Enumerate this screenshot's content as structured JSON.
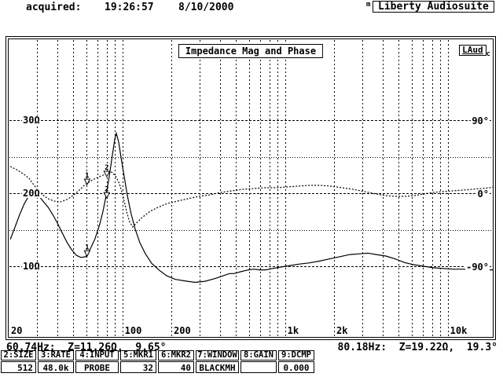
{
  "header": {
    "acquired_label": "acquired:",
    "time": "19:26:57",
    "date": "8/10/2000",
    "mode_flag": "m",
    "app_name": "Liberty Audiosuite"
  },
  "plot": {
    "title": "Impedance Mag and Phase",
    "corner_badge": "LAud",
    "corner_badge_sub": "c"
  },
  "chart_data": {
    "type": "line",
    "title": "Impedance Mag and Phase",
    "x_axis": {
      "scale": "log",
      "unit": "Hz",
      "range": [
        20,
        19500
      ],
      "ticks": [
        {
          "f": 20,
          "label": "20"
        },
        {
          "f": 30
        },
        {
          "f": 40
        },
        {
          "f": 50
        },
        {
          "f": 60
        },
        {
          "f": 70
        },
        {
          "f": 80
        },
        {
          "f": 90
        },
        {
          "f": 100,
          "label": "100"
        },
        {
          "f": 200,
          "label": "200"
        },
        {
          "f": 300
        },
        {
          "f": 400
        },
        {
          "f": 500
        },
        {
          "f": 600
        },
        {
          "f": 700
        },
        {
          "f": 800
        },
        {
          "f": 900
        },
        {
          "f": 1000,
          "label": "1k"
        },
        {
          "f": 2000,
          "label": "2k"
        },
        {
          "f": 3000
        },
        {
          "f": 4000
        },
        {
          "f": 5000
        },
        {
          "f": 6000
        },
        {
          "f": 7000
        },
        {
          "f": 8000
        },
        {
          "f": 9000
        },
        {
          "f": 10000,
          "label": "10k"
        }
      ]
    },
    "y_axis_left": {
      "unit": "ohm",
      "ticks": [
        {
          "z": 30,
          "label": "30Ω",
          "major": true
        },
        {
          "z": 25,
          "major": false
        },
        {
          "z": 20,
          "label": "20Ω",
          "major": true
        },
        {
          "z": 15,
          "major": false
        },
        {
          "z": 10,
          "label": "10Ω",
          "major": true
        }
      ]
    },
    "y_axis_right": {
      "unit": "deg",
      "ticks": [
        {
          "deg": 90,
          "label": "90°"
        },
        {
          "deg": 0,
          "label": "0°"
        },
        {
          "deg": -90,
          "label": "-90°"
        }
      ]
    },
    "series": [
      {
        "name": "impedance-magnitude",
        "style": "solid",
        "unit": "ohm",
        "points": [
          [
            20.5,
            13.7
          ],
          [
            21.9,
            15.4
          ],
          [
            23.4,
            17.1
          ],
          [
            25,
            18.6
          ],
          [
            26.7,
            19.7
          ],
          [
            28.6,
            20.1
          ],
          [
            30.5,
            19.7
          ],
          [
            32.6,
            18.9
          ],
          [
            34.9,
            18.1
          ],
          [
            37.3,
            17.1
          ],
          [
            39.9,
            15.9
          ],
          [
            42.6,
            14.6
          ],
          [
            45.6,
            13.3
          ],
          [
            48.7,
            12.3
          ],
          [
            52.1,
            11.5
          ],
          [
            55.7,
            11.2
          ],
          [
            59.5,
            11.3
          ],
          [
            63.6,
            12.4
          ],
          [
            68,
            13.8
          ],
          [
            72.7,
            15.8
          ],
          [
            76,
            17.5
          ],
          [
            79.4,
            19.6
          ],
          [
            83.1,
            22.3
          ],
          [
            86.9,
            25.3
          ],
          [
            89.8,
            27.4
          ],
          [
            91.8,
            28.2
          ],
          [
            94.9,
            27
          ],
          [
            98.1,
            24.9
          ],
          [
            102.6,
            22.3
          ],
          [
            107.3,
            19.7
          ],
          [
            113.4,
            17.1
          ],
          [
            119.9,
            15.1
          ],
          [
            128.2,
            13.2
          ],
          [
            138.6,
            11.7
          ],
          [
            151.4,
            10.4
          ],
          [
            167.4,
            9.5
          ],
          [
            187.1,
            8.7
          ],
          [
            211.4,
            8.2
          ],
          [
            241.5,
            8.0
          ],
          [
            279.2,
            7.8
          ],
          [
            322.7,
            7.95
          ],
          [
            368.7,
            8.3
          ],
          [
            416.7,
            8.7
          ],
          [
            455.4,
            9.0
          ],
          [
            487,
            9.0
          ],
          [
            532.1,
            9.25
          ],
          [
            594.9,
            9.5
          ],
          [
            643.2,
            9.6
          ],
          [
            695.4,
            9.5
          ],
          [
            760.1,
            9.5
          ],
          [
            839.9,
            9.7
          ],
          [
            949,
            9.9
          ],
          [
            1073,
            10.1
          ],
          [
            1226,
            10.3
          ],
          [
            1401,
            10.45
          ],
          [
            1619,
            10.7
          ],
          [
            1871,
            11.0
          ],
          [
            2162,
            11.3
          ],
          [
            2498,
            11.6
          ],
          [
            2856,
            11.7
          ],
          [
            3227,
            11.8
          ],
          [
            3645,
            11.6
          ],
          [
            4167,
            11.4
          ],
          [
            4765,
            11.0
          ],
          [
            5448,
            10.5
          ],
          [
            6229,
            10.2
          ],
          [
            7118,
            10.0
          ],
          [
            8124,
            9.8
          ],
          [
            9283,
            9.7
          ],
          [
            10727,
            9.6
          ],
          [
            12397,
            9.6
          ],
          [
            14164,
            9.5
          ],
          [
            16367,
            9.5
          ],
          [
            18915,
            9.5
          ]
        ]
      },
      {
        "name": "impedance-phase",
        "style": "dashed",
        "unit": "deg",
        "points": [
          [
            20.5,
            32.9
          ],
          [
            22.4,
            29
          ],
          [
            24.5,
            24.2
          ],
          [
            26.7,
            18.4
          ],
          [
            29.2,
            7.7
          ],
          [
            31.9,
            -1
          ],
          [
            34.9,
            -6.8
          ],
          [
            38.1,
            -9.7
          ],
          [
            41.7,
            -10.6
          ],
          [
            45.6,
            -7.7
          ],
          [
            49.8,
            -2.9
          ],
          [
            54.4,
            3.9
          ],
          [
            58.9,
            10.6
          ],
          [
            64.3,
            15.5
          ],
          [
            70.3,
            19.4
          ],
          [
            76,
            22.3
          ],
          [
            81.3,
            25.2
          ],
          [
            85.9,
            26.1
          ],
          [
            90.8,
            21.3
          ],
          [
            96,
            11.6
          ],
          [
            101.4,
            -4.8
          ],
          [
            106.1,
            -22.3
          ],
          [
            110.9,
            -35.8
          ],
          [
            115.9,
            -41.6
          ],
          [
            121.9,
            -36.8
          ],
          [
            132.3,
            -30
          ],
          [
            148.2,
            -22.3
          ],
          [
            165.5,
            -17.4
          ],
          [
            189.3,
            -12.6
          ],
          [
            218.7,
            -9.7
          ],
          [
            252.6,
            -6.8
          ],
          [
            295.3,
            -3.9
          ],
          [
            345.2,
            -1.9
          ],
          [
            402.7,
            1
          ],
          [
            470.9,
            2.9
          ],
          [
            550.5,
            4.8
          ],
          [
            643.2,
            5.8
          ],
          [
            751.6,
            6.8
          ],
          [
            878.7,
            6.8
          ],
          [
            1027,
            7.7
          ],
          [
            1199,
            8.7
          ],
          [
            1401,
            9.7
          ],
          [
            1637,
            9.7
          ],
          [
            1913,
            8.7
          ],
          [
            2236,
            6.8
          ],
          [
            2613,
            4.8
          ],
          [
            2919,
            2.9
          ],
          [
            3265,
            1
          ],
          [
            3645,
            -1
          ],
          [
            4167,
            -2.9
          ],
          [
            4765,
            -3.9
          ],
          [
            5448,
            -3.9
          ],
          [
            6229,
            -2.9
          ],
          [
            7118,
            -1
          ],
          [
            8124,
            1
          ],
          [
            9283,
            1.9
          ],
          [
            10727,
            2.9
          ],
          [
            12397,
            3.9
          ],
          [
            14164,
            4.8
          ],
          [
            16181,
            5.8
          ],
          [
            18104,
            6.8
          ],
          [
            19141,
            7.7
          ]
        ]
      }
    ],
    "markers": [
      {
        "n": "1",
        "f": 60.74,
        "z": 11.26,
        "deg": 9.65
      },
      {
        "n": "2",
        "f": 80.18,
        "z": 19.22,
        "deg": 19.3
      }
    ]
  },
  "status": {
    "left": "60.74Hz:  Z=11.26Ω,  9.65°",
    "right": "80.18Hz:  Z=19.22Ω,  19.3°"
  },
  "buttons": [
    {
      "key": "2:SIZE",
      "value": "512",
      "align": "right"
    },
    {
      "key": "3:RATE",
      "value": "48.0k",
      "align": "center"
    },
    {
      "key": "4:INPUT",
      "value": "PROBE",
      "align": "center"
    },
    {
      "key": "5:MKR1",
      "value": "32",
      "align": "right"
    },
    {
      "key": "6:MKR2",
      "value": "40",
      "align": "right"
    },
    {
      "key": "7:WINDOW",
      "value": "BLACKMH",
      "align": "center"
    },
    {
      "key": "8:GAIN",
      "value": "",
      "align": "center"
    },
    {
      "key": "9:DCMP",
      "value": "0.000",
      "align": "center"
    }
  ]
}
